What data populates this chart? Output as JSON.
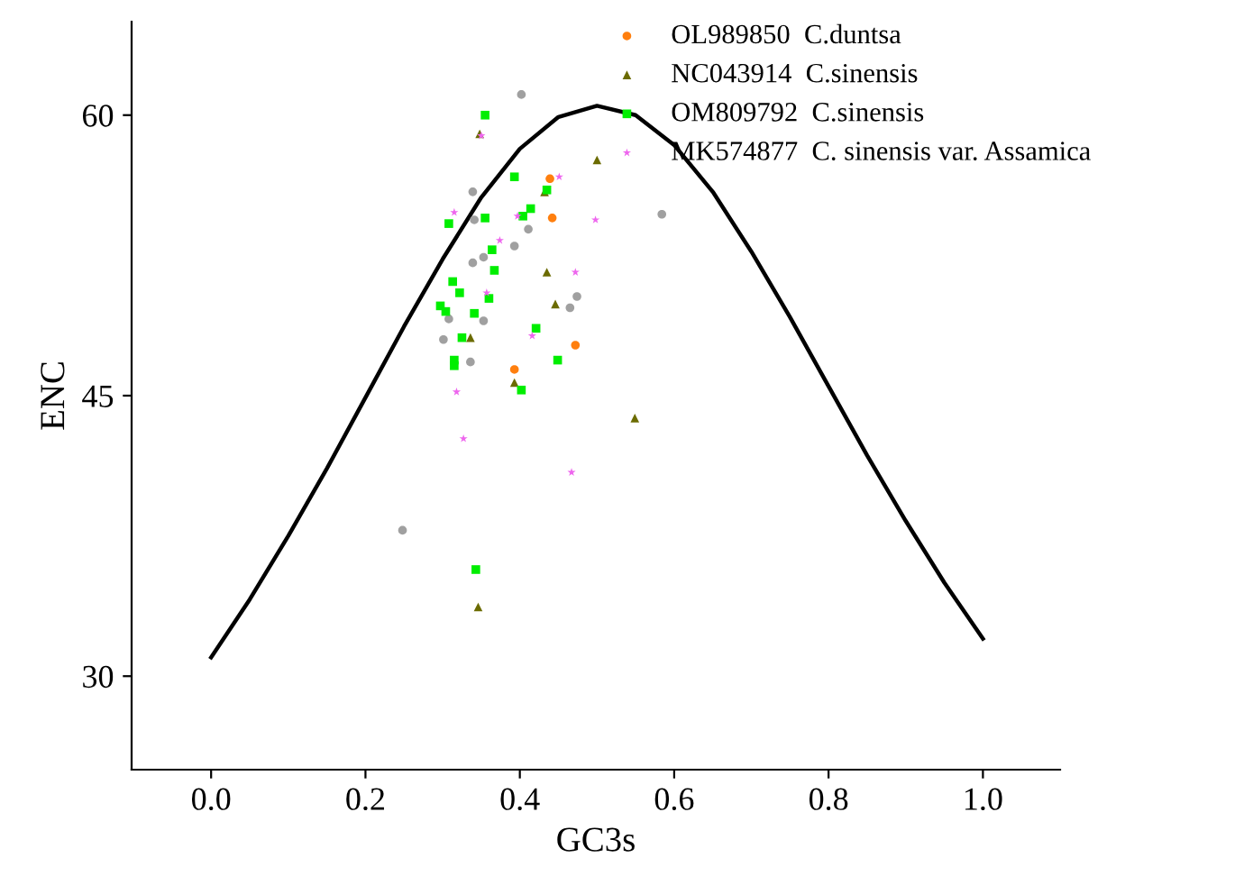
{
  "chart_data": {
    "type": "scatter",
    "xlabel": "GC3s",
    "ylabel": "ENC",
    "xlim": [
      -0.103,
      1.1
    ],
    "ylim": [
      25,
      65
    ],
    "xticks": [
      {
        "value": 0,
        "label": "0.0"
      },
      {
        "value": 0.2,
        "label": "0.2"
      },
      {
        "value": 0.4,
        "label": "0.4"
      },
      {
        "value": 0.6,
        "label": "0.6"
      },
      {
        "value": 0.8,
        "label": "0.8"
      },
      {
        "value": 1.0,
        "label": "1.0"
      }
    ],
    "yticks": [
      30,
      45,
      60
    ],
    "grid": false,
    "legend": "top right",
    "series": [
      {
        "type": "line",
        "color": "#000000",
        "marker": "none",
        "line_style": "solid",
        "x": [
          0,
          0.05,
          0.1,
          0.15,
          0.2,
          0.25,
          0.3,
          0.35,
          0.4,
          0.45,
          0.5,
          0.55,
          0.6,
          0.65,
          0.7,
          0.75,
          0.8,
          0.85,
          0.9,
          0.95,
          1.0
        ],
        "values": [
          31,
          34.1,
          37.5,
          41.1,
          44.9,
          48.7,
          52.3,
          55.6,
          58.2,
          59.9,
          60.5,
          60.0,
          58.4,
          55.9,
          52.7,
          49.2,
          45.5,
          41.8,
          38.3,
          35.0,
          32
        ]
      },
      {
        "color": "#a0a0a0",
        "marker": "circle",
        "x": [
          0.402,
          0.339,
          0.341,
          0.411,
          0.393,
          0.339,
          0.353,
          0.474,
          0.465,
          0.353,
          0.308,
          0.301,
          0.336,
          0.584,
          0.248
        ],
        "values": [
          61.1,
          55.9,
          54.4,
          53.9,
          53.0,
          52.1,
          52.4,
          50.3,
          49.7,
          49.0,
          49.1,
          48.0,
          46.8,
          54.7,
          37.8
        ]
      },
      {
        "name": "OL989850  C.duntsa",
        "color": "#ff7f0e",
        "marker": "circle",
        "x": [
          0.439,
          0.442,
          0.472,
          0.393
        ],
        "values": [
          56.6,
          54.5,
          47.7,
          46.4
        ]
      },
      {
        "name": "NC043914  C.sinensis",
        "color": "#6b6b00",
        "marker": "triangle",
        "x": [
          0.5,
          0.432,
          0.435,
          0.446,
          0.336,
          0.348,
          0.393,
          0.549,
          0.346
        ],
        "values": [
          57.6,
          55.9,
          51.6,
          49.9,
          48.1,
          59.0,
          45.7,
          43.8,
          33.7
        ]
      },
      {
        "name": "OM809792  C.sinensis",
        "color": "#00ee00",
        "marker": "square",
        "x": [
          0.355,
          0.393,
          0.435,
          0.414,
          0.404,
          0.355,
          0.308,
          0.364,
          0.367,
          0.313,
          0.322,
          0.36,
          0.297,
          0.304,
          0.341,
          0.421,
          0.325,
          0.315,
          0.315,
          0.449,
          0.402,
          0.343
        ],
        "values": [
          60.0,
          56.7,
          56.0,
          55.0,
          54.6,
          54.5,
          54.2,
          52.8,
          51.7,
          51.1,
          50.5,
          50.2,
          49.8,
          49.5,
          49.4,
          48.6,
          48.1,
          46.9,
          46.6,
          46.9,
          45.3,
          35.7
        ]
      },
      {
        "name": "MK574877  C. sinensis var. Assamica",
        "color": "#ee66ee",
        "marker": "star",
        "x": [
          0.451,
          0.498,
          0.35,
          0.397,
          0.374,
          0.472,
          0.357,
          0.416,
          0.315,
          0.327,
          0.467,
          0.318
        ],
        "values": [
          56.7,
          54.4,
          58.9,
          54.6,
          53.3,
          51.6,
          50.5,
          48.2,
          54.8,
          42.7,
          40.9,
          45.2
        ]
      }
    ]
  }
}
